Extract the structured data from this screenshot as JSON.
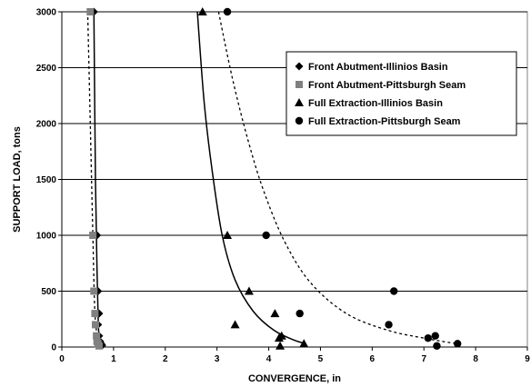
{
  "chart_data": {
    "type": "scatter",
    "xlabel": "CONVERGENCE, in",
    "ylabel": "SUPPORT LOAD, tons",
    "xlim": [
      0,
      9
    ],
    "ylim": [
      0,
      3000
    ],
    "x_ticks": [
      0,
      1,
      2,
      3,
      4,
      5,
      6,
      7,
      8,
      9
    ],
    "y_ticks": [
      0,
      500,
      1000,
      1500,
      2000,
      2500,
      3000
    ],
    "grid": "horizontal",
    "legend_position": "top-right",
    "series": [
      {
        "name": "Front Abutment-Illinios Basin",
        "marker": "diamond",
        "color": "#000000",
        "points": [
          [
            0.62,
            3000
          ],
          [
            0.68,
            1000
          ],
          [
            0.7,
            500
          ],
          [
            0.72,
            300
          ],
          [
            0.7,
            200
          ],
          [
            0.72,
            100
          ],
          [
            0.74,
            50
          ],
          [
            0.76,
            30
          ],
          [
            0.78,
            15
          ]
        ]
      },
      {
        "name": "Front Abutment-Pittsburgh Seam",
        "marker": "square",
        "color": "#808080",
        "points": [
          [
            0.55,
            3000
          ],
          [
            0.6,
            1000
          ],
          [
            0.62,
            500
          ],
          [
            0.64,
            300
          ],
          [
            0.65,
            200
          ],
          [
            0.67,
            100
          ],
          [
            0.68,
            50
          ],
          [
            0.7,
            30
          ],
          [
            0.72,
            10
          ]
        ]
      },
      {
        "name": "Full Extraction-Illinios Basin",
        "marker": "triangle",
        "color": "#000000",
        "points": [
          [
            2.72,
            3000
          ],
          [
            3.2,
            1000
          ],
          [
            3.62,
            500
          ],
          [
            3.35,
            200
          ],
          [
            4.12,
            300
          ],
          [
            4.25,
            100
          ],
          [
            4.2,
            80
          ],
          [
            4.22,
            10
          ],
          [
            4.68,
            30
          ]
        ]
      },
      {
        "name": "Full Extraction-Pittsburgh Seam",
        "marker": "circle",
        "color": "#000000",
        "points": [
          [
            3.2,
            3000
          ],
          [
            3.95,
            1000
          ],
          [
            4.6,
            300
          ],
          [
            6.42,
            500
          ],
          [
            6.32,
            200
          ],
          [
            7.08,
            80
          ],
          [
            7.22,
            100
          ],
          [
            7.25,
            10
          ],
          [
            7.65,
            30
          ]
        ]
      }
    ],
    "trendlines": [
      {
        "series": "Front Abutment-Illinios Basin",
        "style": "solid",
        "points": [
          [
            0.62,
            3000
          ],
          [
            0.65,
            1500
          ],
          [
            0.68,
            700
          ],
          [
            0.7,
            300
          ],
          [
            0.72,
            100
          ],
          [
            0.78,
            0
          ]
        ]
      },
      {
        "series": "Front Abutment-Pittsburgh Seam",
        "style": "dashed",
        "points": [
          [
            0.5,
            3000
          ],
          [
            0.55,
            2000
          ],
          [
            0.6,
            1000
          ],
          [
            0.64,
            300
          ],
          [
            0.7,
            60
          ],
          [
            0.72,
            0
          ]
        ]
      },
      {
        "series": "Full Extraction-Illinios Basin",
        "style": "solid",
        "points": [
          [
            2.62,
            3000
          ],
          [
            2.75,
            2200
          ],
          [
            2.9,
            1600
          ],
          [
            3.1,
            1000
          ],
          [
            3.35,
            600
          ],
          [
            3.7,
            320
          ],
          [
            4.1,
            150
          ],
          [
            4.5,
            60
          ],
          [
            4.72,
            30
          ]
        ]
      },
      {
        "series": "Full Extraction-Pittsburgh Seam",
        "style": "dashed",
        "points": [
          [
            3.03,
            3000
          ],
          [
            3.3,
            2400
          ],
          [
            3.6,
            1850
          ],
          [
            3.9,
            1400
          ],
          [
            4.3,
            950
          ],
          [
            4.8,
            580
          ],
          [
            5.5,
            300
          ],
          [
            6.3,
            150
          ],
          [
            7.0,
            80
          ],
          [
            7.5,
            40
          ],
          [
            7.7,
            30
          ]
        ]
      }
    ]
  }
}
